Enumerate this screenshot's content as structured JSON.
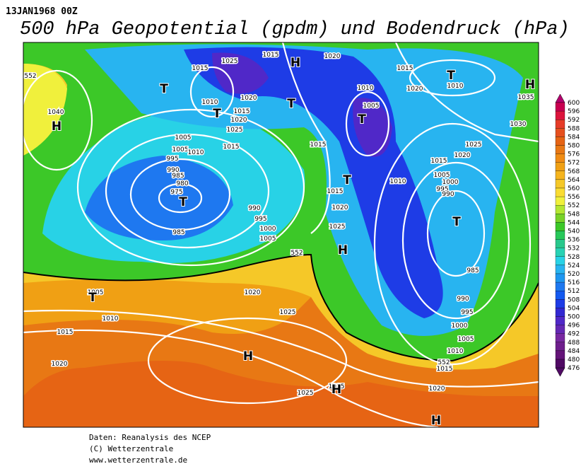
{
  "header": {
    "date": "13JAN1968 00Z",
    "title": "500 hPa Geopotential (gpdm) und Bodendruck (hPa)"
  },
  "colorbar": {
    "levels": [
      600,
      596,
      592,
      588,
      584,
      580,
      576,
      572,
      568,
      564,
      560,
      556,
      552,
      548,
      544,
      540,
      536,
      532,
      528,
      524,
      520,
      516,
      512,
      508,
      504,
      500,
      496,
      492,
      488,
      484,
      480,
      476
    ],
    "colors": [
      "#b4006e",
      "#c80050",
      "#dc143c",
      "#e63c28",
      "#e6501e",
      "#e66414",
      "#e87814",
      "#f08c14",
      "#f0a014",
      "#f5b41e",
      "#f5c828",
      "#fadc32",
      "#f0f03c",
      "#b4e632",
      "#78d228",
      "#3cc828",
      "#28c85a",
      "#28c88c",
      "#28d2b4",
      "#28d2e6",
      "#28b4f0",
      "#1e96f0",
      "#1e78f0",
      "#145af0",
      "#1e3ce6",
      "#3228d2",
      "#5028c8",
      "#6428b4",
      "#7828a0",
      "#6e1e8c",
      "#641478",
      "#500a64"
    ]
  },
  "map": {
    "labels": [
      "1015",
      "1020",
      "1025",
      "H",
      "1015",
      "1015",
      "T",
      "H",
      "T",
      "1010",
      "1020",
      "1010",
      "1035",
      "1010",
      "1020",
      "T",
      "1005",
      "1015",
      "1020",
      "T",
      "T",
      "1040",
      "H",
      "1025",
      "1030",
      "1005",
      "1015",
      "1015",
      "1025",
      "1005",
      "1010",
      "1020",
      "995",
      "1015",
      "990",
      "985",
      "T",
      "1005",
      "980",
      "1010",
      "1000",
      "995",
      "975",
      "1015",
      "990",
      "T",
      "1020",
      "990",
      "T",
      "995",
      "1025",
      "1000",
      "1005",
      "985",
      "H",
      "985",
      "1005",
      "1020",
      "T",
      "990",
      "1025",
      "995",
      "1010",
      "1000",
      "1015",
      "1005",
      "H",
      "1010",
      "1020",
      "1015",
      "1020",
      "1025",
      "1015",
      "H",
      "H",
      "552",
      "552",
      "552"
    ]
  },
  "footer": [
    "Daten: Reanalysis des NCEP",
    "(C) Wetterzentrale",
    "www.wetterzentrale.de"
  ]
}
